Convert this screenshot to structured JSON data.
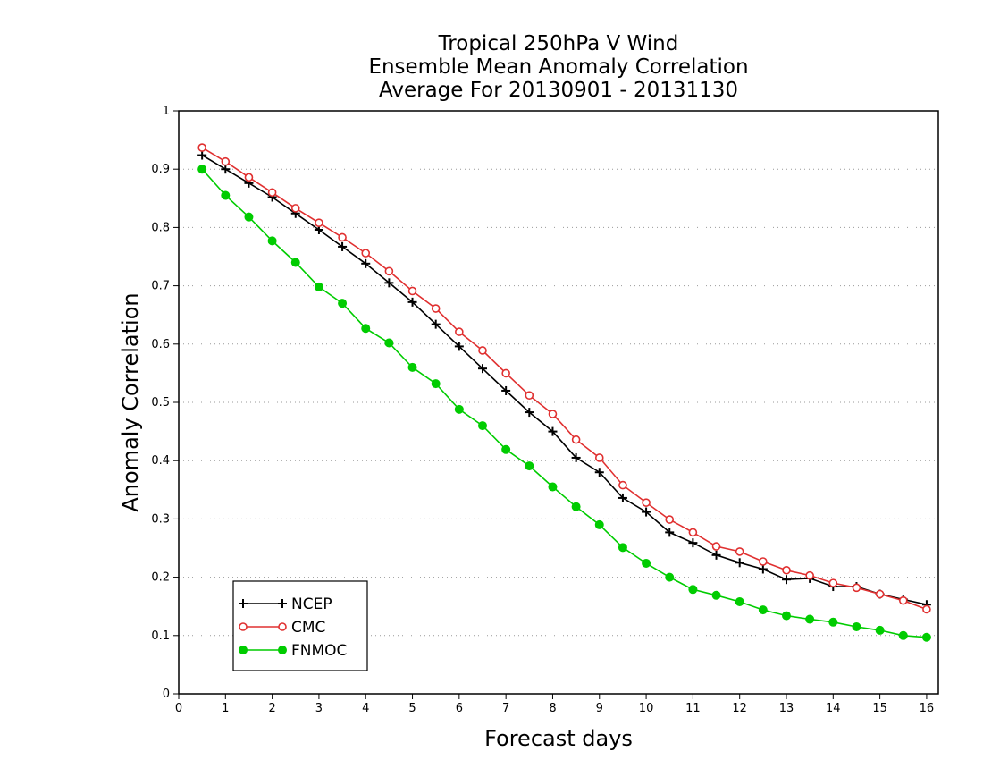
{
  "chart_data": {
    "type": "line",
    "title_lines": [
      "Tropical 250hPa V Wind",
      "Ensemble Mean Anomaly Correlation",
      "Average For 20130901 - 20131130"
    ],
    "xlabel": "Forecast days",
    "ylabel": "Anomaly Correlation",
    "xlim": [
      0,
      16.25
    ],
    "ylim": [
      0,
      1
    ],
    "xticks": [
      "0",
      "1",
      "2",
      "3",
      "4",
      "5",
      "6",
      "7",
      "8",
      "9",
      "10",
      "11",
      "12",
      "13",
      "14",
      "15",
      "16"
    ],
    "yticks": [
      "0",
      "0.1",
      "0.2",
      "0.3",
      "0.4",
      "0.5",
      "0.6",
      "0.7",
      "0.8",
      "0.9",
      "1"
    ],
    "grid": "horizontal-dotted",
    "legend_position": "bottom-left",
    "x": [
      0.5,
      1,
      1.5,
      2,
      2.5,
      3,
      3.5,
      4,
      4.5,
      5,
      5.5,
      6,
      6.5,
      7,
      7.5,
      8,
      8.5,
      9,
      9.5,
      10,
      10.5,
      11,
      11.5,
      12,
      12.5,
      13,
      13.5,
      14,
      14.5,
      15,
      15.5,
      16
    ],
    "series": [
      {
        "name": "NCEP",
        "color": "#000000",
        "marker": "plus",
        "values": [
          0.924,
          0.9,
          0.876,
          0.852,
          0.824,
          0.796,
          0.767,
          0.738,
          0.705,
          0.672,
          0.634,
          0.596,
          0.558,
          0.52,
          0.483,
          0.45,
          0.405,
          0.38,
          0.336,
          0.312,
          0.277,
          0.259,
          0.238,
          0.225,
          0.214,
          0.196,
          0.198,
          0.184,
          0.184,
          0.171,
          0.162,
          0.153
        ]
      },
      {
        "name": "CMC",
        "color": "#e03030",
        "marker": "open-circle",
        "values": [
          0.937,
          0.913,
          0.886,
          0.86,
          0.833,
          0.808,
          0.783,
          0.756,
          0.725,
          0.691,
          0.661,
          0.621,
          0.589,
          0.55,
          0.512,
          0.48,
          0.436,
          0.405,
          0.358,
          0.328,
          0.299,
          0.277,
          0.253,
          0.244,
          0.227,
          0.212,
          0.203,
          0.19,
          0.182,
          0.171,
          0.16,
          0.145
        ]
      },
      {
        "name": "FNMOC",
        "color": "#00cc00",
        "marker": "filled-circle",
        "values": [
          0.9,
          0.855,
          0.818,
          0.777,
          0.74,
          0.698,
          0.67,
          0.627,
          0.602,
          0.56,
          0.532,
          0.488,
          0.46,
          0.419,
          0.391,
          0.355,
          0.321,
          0.29,
          0.251,
          0.224,
          0.2,
          0.179,
          0.169,
          0.158,
          0.144,
          0.134,
          0.128,
          0.123,
          0.115,
          0.109,
          0.1,
          0.097
        ]
      }
    ]
  }
}
